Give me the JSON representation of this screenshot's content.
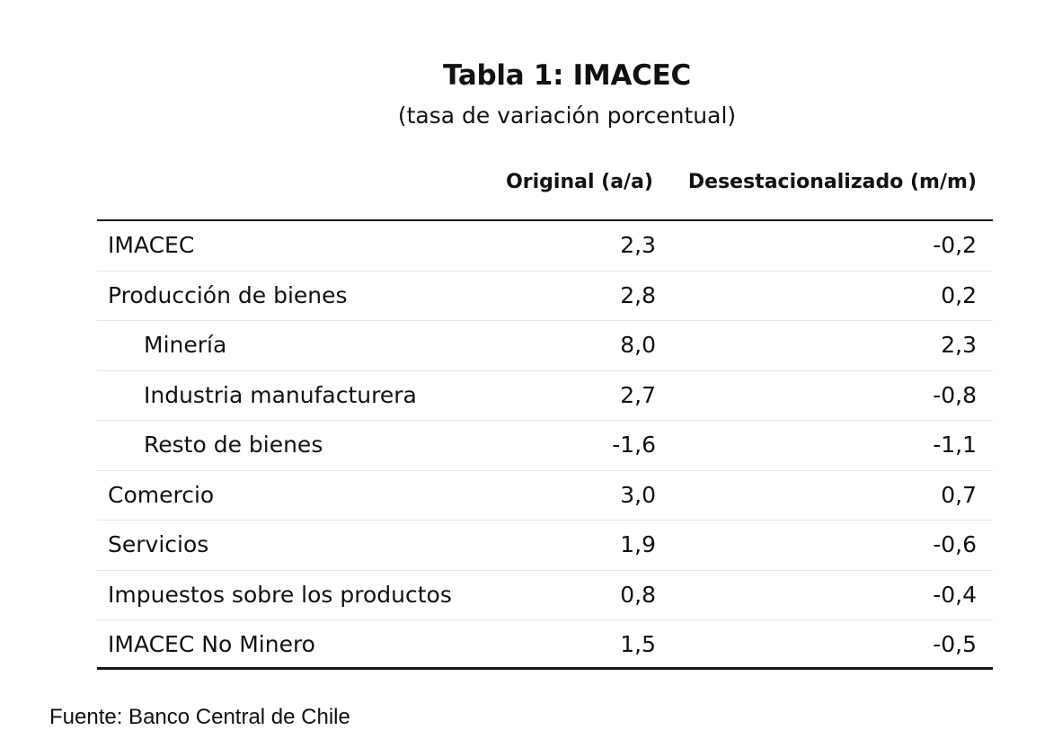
{
  "table": {
    "title": "Tabla 1:  IMACEC",
    "subtitle": "(tasa de variación porcentual)",
    "columns": [
      "Original (a/a)",
      "Desestacionalizado (m/m)"
    ],
    "rows": [
      {
        "label": "IMACEC",
        "original": "2,3",
        "desest": "-0,2",
        "indent": false
      },
      {
        "label": "Producción de bienes",
        "original": "2,8",
        "desest": "0,2",
        "indent": false
      },
      {
        "label": "Minería",
        "original": "8,0",
        "desest": "2,3",
        "indent": true
      },
      {
        "label": "Industria manufacturera",
        "original": "2,7",
        "desest": "-0,8",
        "indent": true
      },
      {
        "label": "Resto de bienes",
        "original": "-1,6",
        "desest": "-1,1",
        "indent": true
      },
      {
        "label": "Comercio",
        "original": "3,0",
        "desest": "0,7",
        "indent": false
      },
      {
        "label": "Servicios",
        "original": "1,9",
        "desest": "-0,6",
        "indent": false
      },
      {
        "label": "Impuestos sobre los productos",
        "original": "0,8",
        "desest": "-0,4",
        "indent": false
      },
      {
        "label": "IMACEC No Minero",
        "original": "1,5",
        "desest": "-0,5",
        "indent": false
      }
    ],
    "source": "Fuente: Banco Central de Chile"
  }
}
